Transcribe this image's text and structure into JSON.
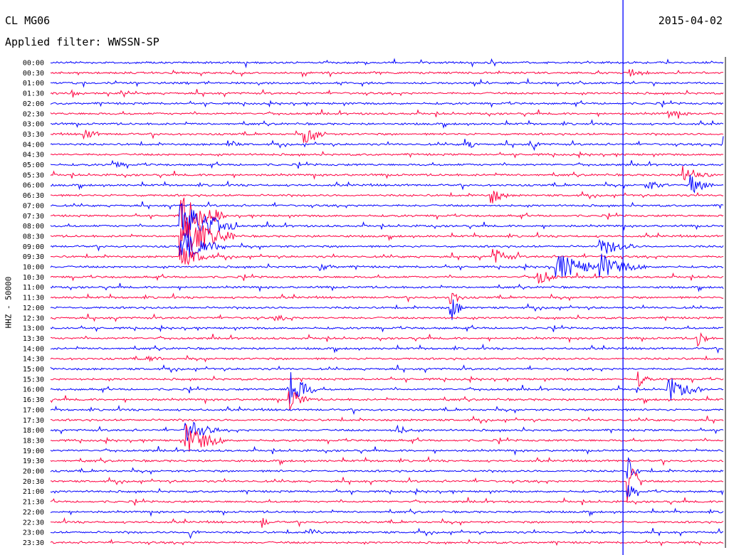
{
  "header": {
    "station": "CL MG06",
    "filter": "Applied filter: WWSSN-SP",
    "date": "2015-04-02"
  },
  "chart_data": {
    "type": "line",
    "ylabel": "HHZ - 50000",
    "rows": [
      "00:00",
      "00:30",
      "01:00",
      "01:30",
      "02:00",
      "02:30",
      "03:00",
      "03:30",
      "04:00",
      "04:30",
      "05:00",
      "05:30",
      "06:00",
      "06:30",
      "07:00",
      "07:30",
      "08:00",
      "08:30",
      "09:00",
      "09:30",
      "10:00",
      "10:30",
      "11:00",
      "11:30",
      "12:00",
      "12:30",
      "13:00",
      "13:30",
      "14:00",
      "14:30",
      "15:00",
      "15:30",
      "16:00",
      "16:30",
      "17:00",
      "17:30",
      "18:00",
      "18:30",
      "19:00",
      "19:30",
      "20:00",
      "20:30",
      "21:00",
      "21:30",
      "22:00",
      "22:30",
      "23:00",
      "23:30"
    ],
    "colors": [
      "#0000ff",
      "#ff0040"
    ],
    "current_time_marker_minutes": 25.5
  }
}
